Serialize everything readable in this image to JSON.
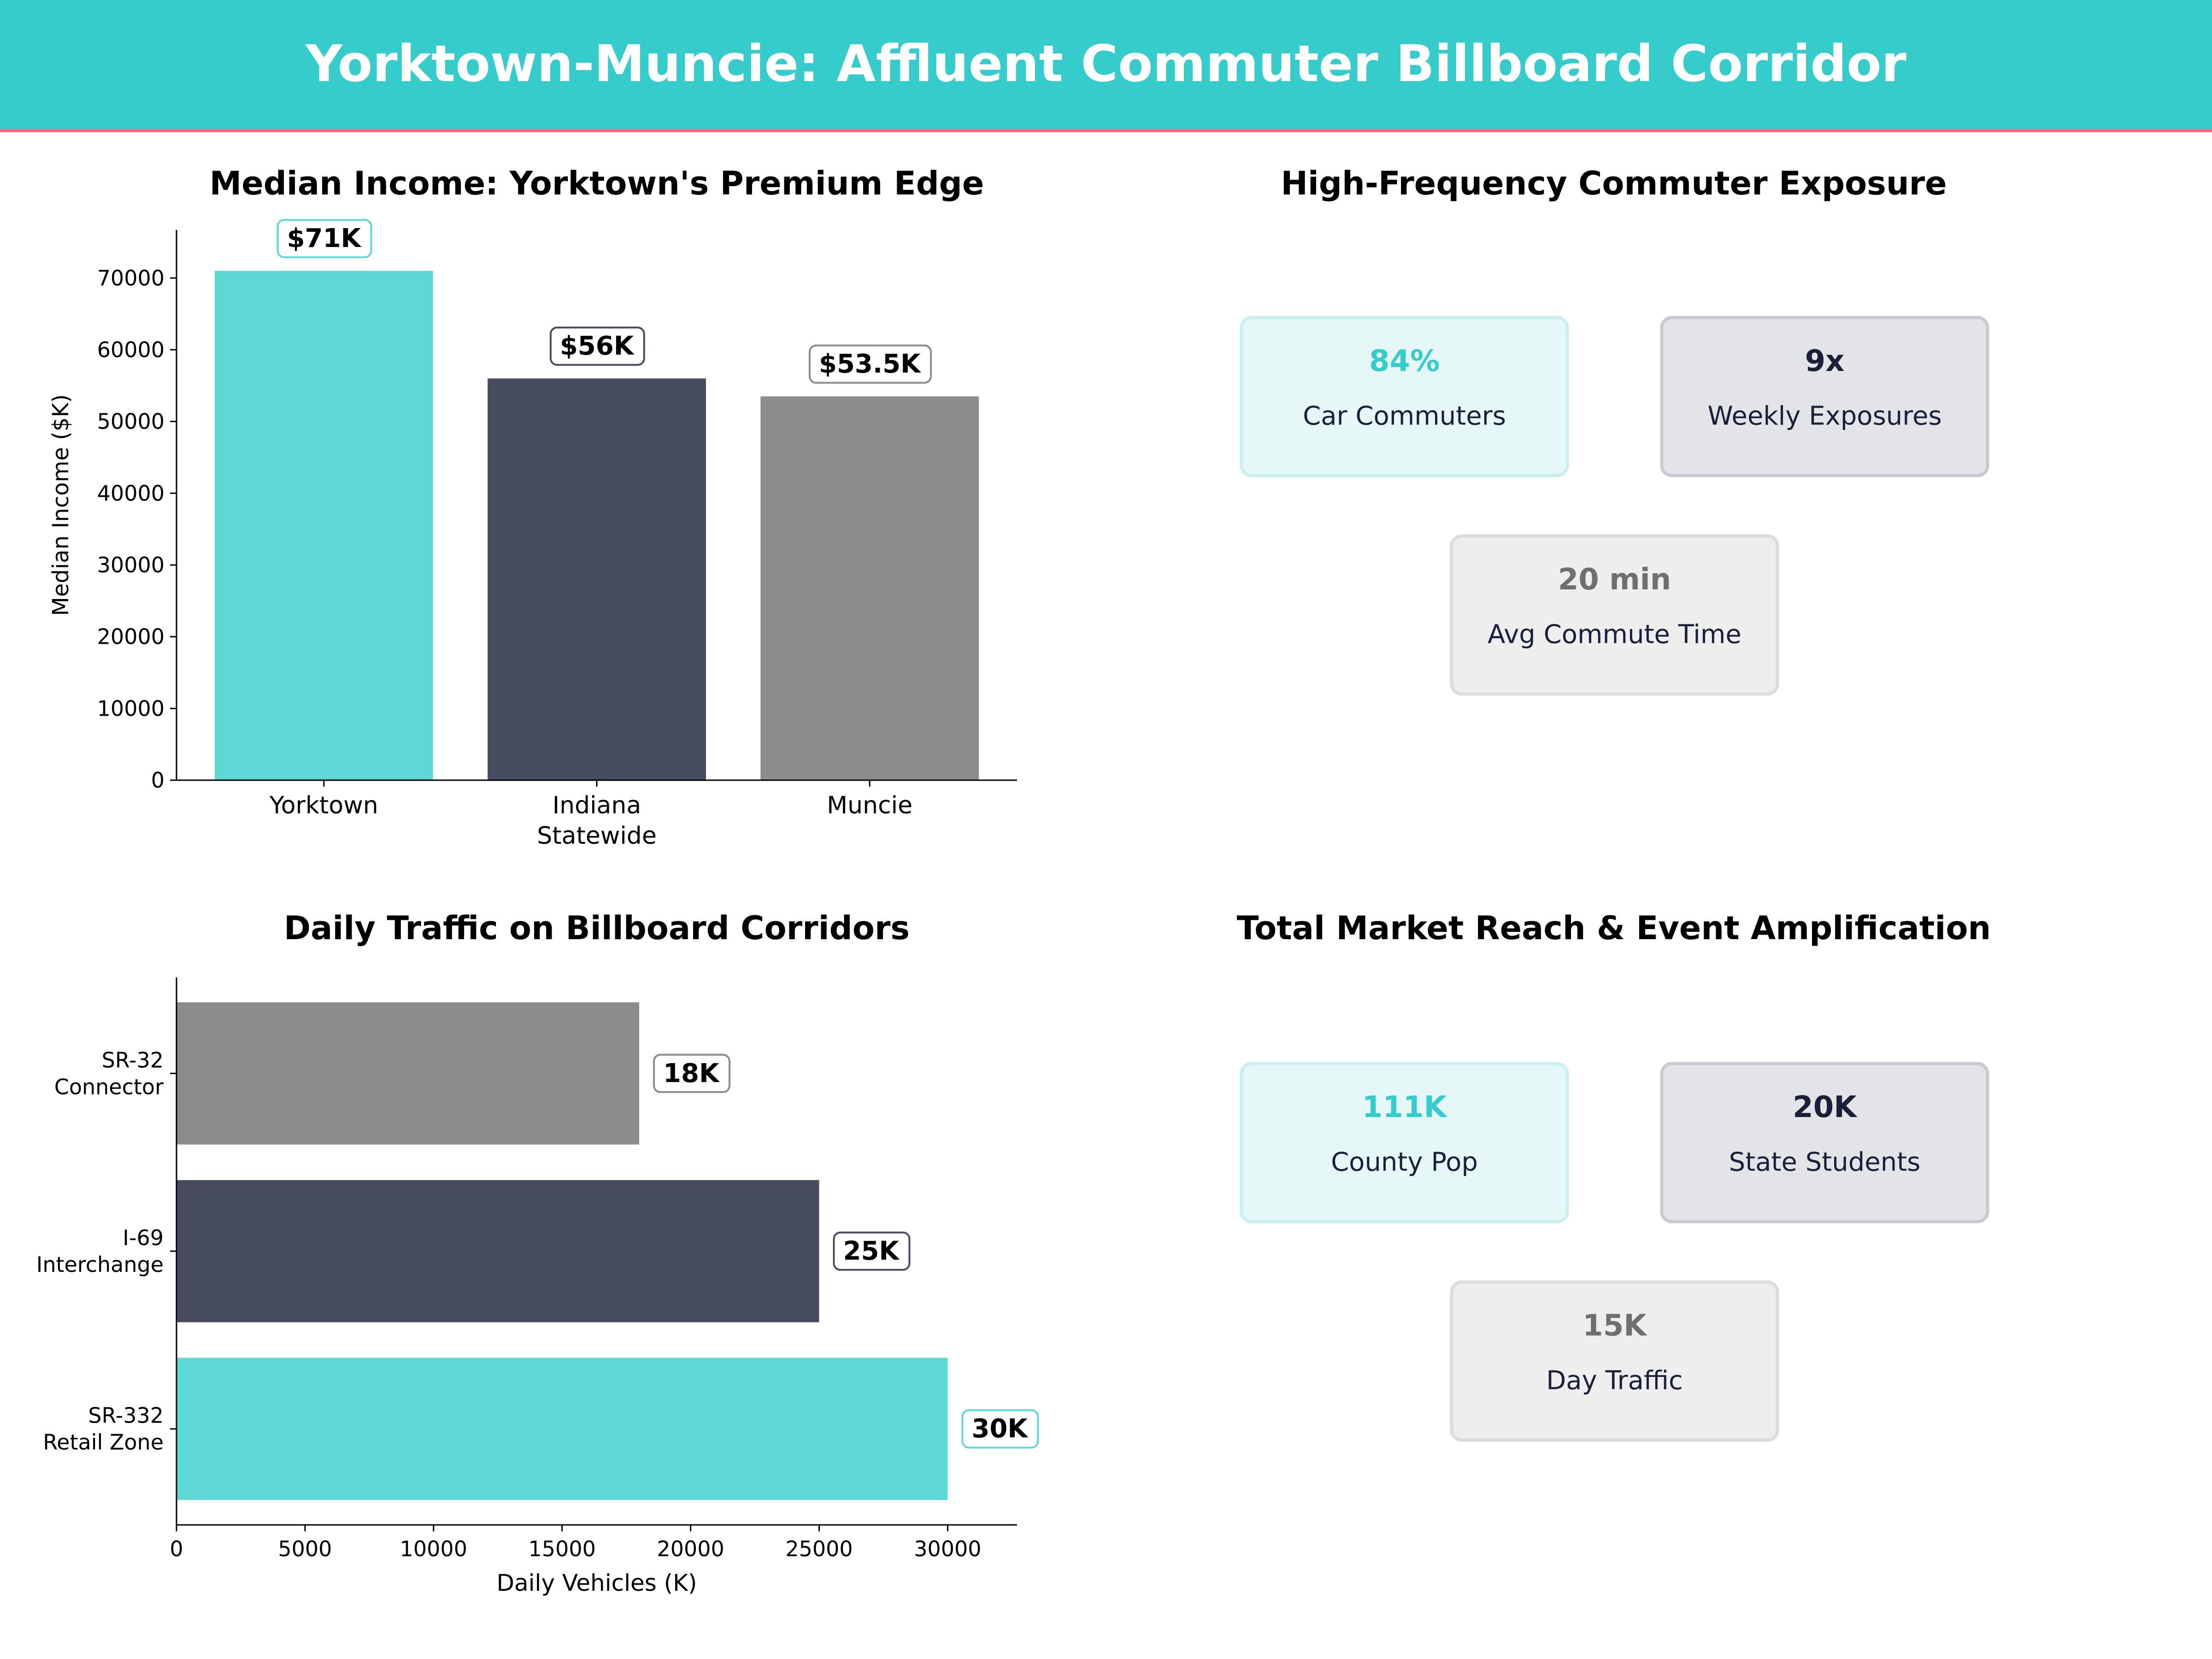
{
  "header": {
    "title": "Yorktown-Muncie: Affluent Commuter Billboard Corridor"
  },
  "colors": {
    "header_bg": "#36cccc",
    "header_line": "#f0677f",
    "teal": "#5dd8d4",
    "navy": "#464b60",
    "gray": "#8c8c8c"
  },
  "chart_data": [
    {
      "type": "bar",
      "title": "Median Income: Yorktown's Premium Edge",
      "xlabel": "",
      "ylabel": "Median Income ($K)",
      "categories": [
        [
          "Yorktown"
        ],
        [
          "Indiana",
          "Statewide"
        ],
        [
          "Muncie"
        ]
      ],
      "values": [
        71000,
        56000,
        53500
      ],
      "data_labels": [
        "$71K",
        "$56K",
        "$53.5K"
      ],
      "colors": [
        "#5dd8d4",
        "#464b60",
        "#8c8c8c"
      ],
      "ylim": [
        0,
        76700
      ],
      "yticks": [
        0,
        10000,
        20000,
        30000,
        40000,
        50000,
        60000,
        70000
      ],
      "grid": false
    },
    {
      "type": "bar",
      "orientation": "horizontal",
      "title": "Daily Traffic on Billboard Corridors",
      "xlabel": "Daily Vehicles (K)",
      "ylabel": "",
      "categories": [
        [
          "SR-332",
          "Retail Zone"
        ],
        [
          "I-69",
          "Interchange"
        ],
        [
          "SR-32",
          "Connector"
        ]
      ],
      "values": [
        30000,
        25000,
        18000
      ],
      "data_labels": [
        "30K",
        "25K",
        "18K"
      ],
      "colors": [
        "#5dd8d4",
        "#464b60",
        "#8c8c8c"
      ],
      "xlim": [
        0,
        32700
      ],
      "xticks": [
        0,
        5000,
        10000,
        15000,
        20000,
        25000,
        30000
      ],
      "grid": false
    }
  ],
  "panels": [
    {
      "title": "High-Frequency Commuter Exposure",
      "cards": [
        {
          "value": "84%",
          "label": "Car Commuters",
          "style": "teal"
        },
        {
          "value": "9x",
          "label": "Weekly Exposures",
          "style": "navy"
        },
        {
          "value": "20 min",
          "label": "Avg Commute Time",
          "style": "gray"
        }
      ]
    },
    {
      "title": "Total Market Reach & Event Amplification",
      "cards": [
        {
          "value": "111K",
          "label": "County Pop",
          "style": "teal"
        },
        {
          "value": "20K",
          "label": "State Students",
          "style": "navy"
        },
        {
          "value": "15K",
          "label": "Day Traffic",
          "style": "gray"
        }
      ]
    }
  ]
}
